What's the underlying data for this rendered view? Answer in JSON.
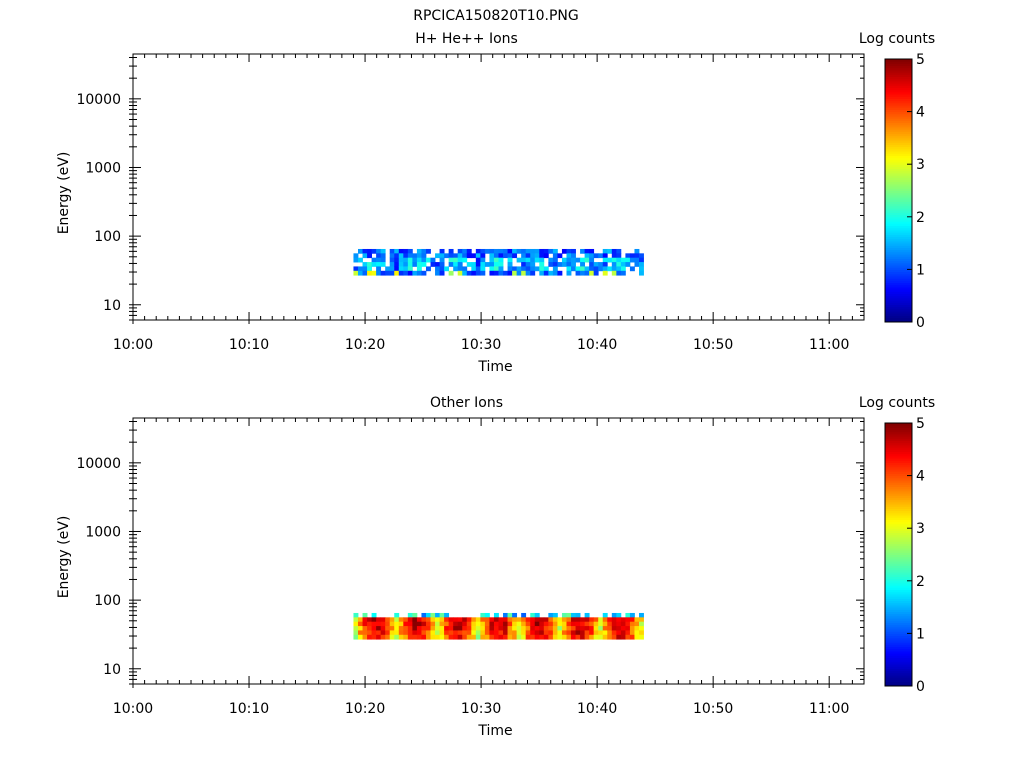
{
  "figure_title": "RPCICA150820T10.PNG",
  "colors": {
    "colormap": [
      "#00007f",
      "#0000ff",
      "#007fff",
      "#00ffff",
      "#7fff7f",
      "#ffff00",
      "#ff7f00",
      "#ff0000",
      "#7f0000"
    ]
  },
  "chart_data": [
    {
      "type": "heatmap",
      "title": "H+ He++ Ions",
      "xlabel": "Time",
      "ylabel": "Energy (eV)",
      "x_scale": "time",
      "y_scale": "log",
      "xlim": [
        "10:00",
        "11:03"
      ],
      "ylim": [
        6,
        45000
      ],
      "x_ticks": [
        "10:00",
        "10:10",
        "10:20",
        "10:30",
        "10:40",
        "10:50",
        "11:00"
      ],
      "y_ticks": [
        "10",
        "100",
        "1000",
        "10000"
      ],
      "colorbar": {
        "label": "Log counts",
        "min": 0,
        "max": 5,
        "ticks": [
          "0",
          "1",
          "2",
          "3",
          "4",
          "5"
        ]
      },
      "data_time_range": [
        "10:19",
        "10:44"
      ],
      "data_energy_range": [
        27,
        65
      ],
      "grid": false,
      "level": "low",
      "typical_log_counts": 1.3
    },
    {
      "type": "heatmap",
      "title": "Other Ions",
      "xlabel": "Time",
      "ylabel": "Energy (eV)",
      "x_scale": "time",
      "y_scale": "log",
      "xlim": [
        "10:00",
        "11:03"
      ],
      "ylim": [
        6,
        45000
      ],
      "x_ticks": [
        "10:00",
        "10:10",
        "10:20",
        "10:30",
        "10:40",
        "10:50",
        "11:00"
      ],
      "y_ticks": [
        "10",
        "100",
        "1000",
        "10000"
      ],
      "colorbar": {
        "label": "Log counts",
        "min": 0,
        "max": 5,
        "ticks": [
          "0",
          "1",
          "2",
          "3",
          "4",
          "5"
        ]
      },
      "data_time_range": [
        "10:19",
        "10:44"
      ],
      "data_energy_range": [
        27,
        65
      ],
      "grid": false,
      "level": "high",
      "typical_log_counts": 3.8
    }
  ]
}
